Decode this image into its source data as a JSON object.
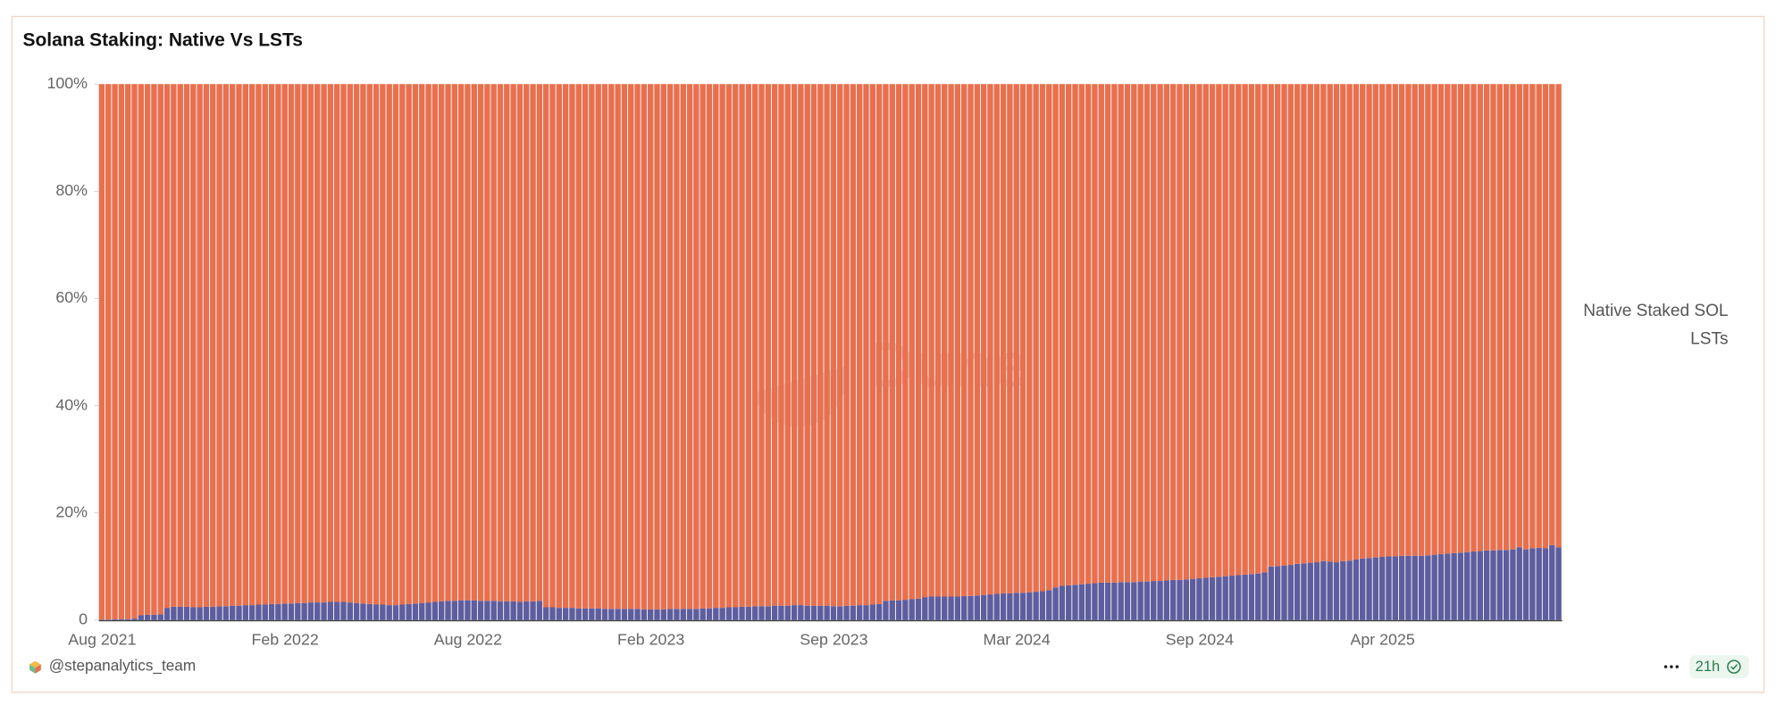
{
  "header": {
    "title": "Solana Staking: Native Vs LSTs"
  },
  "chart_data": {
    "type": "stacked-bar-100",
    "watermark": "Dune",
    "categories": [
      "Aug 2021",
      null,
      null,
      null,
      null,
      null,
      null,
      null,
      null,
      null,
      null,
      null,
      null,
      null,
      null,
      null,
      null,
      null,
      null,
      null,
      null,
      null,
      null,
      null,
      null,
      null,
      null,
      null,
      "Feb 2022",
      null,
      null,
      null,
      null,
      null,
      null,
      null,
      null,
      null,
      null,
      null,
      null,
      null,
      null,
      null,
      null,
      null,
      null,
      null,
      null,
      null,
      null,
      null,
      null,
      null,
      null,
      null,
      "Aug 2022",
      null,
      null,
      null,
      null,
      null,
      null,
      null,
      null,
      null,
      null,
      null,
      null,
      null,
      null,
      null,
      null,
      null,
      null,
      null,
      null,
      null,
      null,
      null,
      null,
      null,
      null,
      null,
      "Feb 2023",
      null,
      null,
      null,
      null,
      null,
      null,
      null,
      null,
      null,
      null,
      null,
      null,
      null,
      null,
      null,
      null,
      null,
      null,
      null,
      null,
      null,
      null,
      null,
      null,
      null,
      null,
      null,
      "Sep 2023",
      null,
      null,
      null,
      null,
      null,
      null,
      null,
      null,
      null,
      null,
      null,
      null,
      null,
      null,
      null,
      null,
      null,
      null,
      null,
      null,
      null,
      null,
      null,
      null,
      null,
      null,
      null,
      "Mar 2024",
      null,
      null,
      null,
      null,
      null,
      null,
      null,
      null,
      null,
      null,
      null,
      null,
      null,
      null,
      null,
      null,
      null,
      null,
      null,
      null,
      null,
      null,
      null,
      null,
      null,
      null,
      null,
      "Sep 2024",
      null,
      null,
      null,
      null,
      null,
      null,
      null,
      null,
      null,
      null,
      null,
      null,
      null,
      null,
      null,
      null,
      null,
      null,
      null,
      null,
      null,
      null,
      null,
      null,
      null,
      null,
      null,
      "Apr 2025",
      null,
      null,
      null,
      null,
      null,
      null,
      null,
      null,
      null,
      null,
      null,
      null,
      null,
      null,
      null,
      null,
      null,
      null,
      null,
      null,
      null,
      null,
      null,
      null,
      null,
      null,
      null
    ],
    "series": [
      {
        "name": "Native Staked SOL",
        "color": "#e8704e",
        "values": [
          99.9,
          99.9,
          99.8,
          99.8,
          99.8,
          99.7,
          99.1,
          99.0,
          99.0,
          98.9,
          97.7,
          97.5,
          97.5,
          97.5,
          97.6,
          97.6,
          97.5,
          97.5,
          97.4,
          97.4,
          97.3,
          97.3,
          97.2,
          97.2,
          97.1,
          97.1,
          97.0,
          97.0,
          96.9,
          96.9,
          96.8,
          96.8,
          96.7,
          96.7,
          96.7,
          96.6,
          96.6,
          96.6,
          96.7,
          96.8,
          96.9,
          97.0,
          97.1,
          97.1,
          97.2,
          97.2,
          97.1,
          97.0,
          96.9,
          96.8,
          96.7,
          96.6,
          96.5,
          96.4,
          96.4,
          96.3,
          96.3,
          96.3,
          96.4,
          96.4,
          96.4,
          96.5,
          96.5,
          96.5,
          96.6,
          96.5,
          96.5,
          96.4,
          97.6,
          97.6,
          97.7,
          97.7,
          97.7,
          97.8,
          97.8,
          97.8,
          97.8,
          97.9,
          97.9,
          97.9,
          97.9,
          97.9,
          97.9,
          98.0,
          98.0,
          98.0,
          98.0,
          97.9,
          97.9,
          97.9,
          97.9,
          97.9,
          97.8,
          97.8,
          97.7,
          97.7,
          97.6,
          97.6,
          97.5,
          97.5,
          97.4,
          97.4,
          97.4,
          97.3,
          97.3,
          97.3,
          97.2,
          97.2,
          97.3,
          97.3,
          97.3,
          97.3,
          97.4,
          97.4,
          97.3,
          97.3,
          97.2,
          97.2,
          97.1,
          97.0,
          96.4,
          96.3,
          96.3,
          96.2,
          96.1,
          96.0,
          95.7,
          95.6,
          95.6,
          95.6,
          95.6,
          95.6,
          95.5,
          95.5,
          95.4,
          95.3,
          95.2,
          95.1,
          95.0,
          95.0,
          94.9,
          94.9,
          94.8,
          94.7,
          94.6,
          94.4,
          93.9,
          93.6,
          93.5,
          93.4,
          93.3,
          93.2,
          93.1,
          93.0,
          93.0,
          93.0,
          92.9,
          92.9,
          92.9,
          92.8,
          92.8,
          92.7,
          92.7,
          92.6,
          92.5,
          92.5,
          92.4,
          92.3,
          92.2,
          92.1,
          92.0,
          91.9,
          91.8,
          91.7,
          91.6,
          91.5,
          91.4,
          91.3,
          91.1,
          90.0,
          89.9,
          89.8,
          89.7,
          89.5,
          89.4,
          89.3,
          89.2,
          89.0,
          89.1,
          89.2,
          89.0,
          88.9,
          88.7,
          88.5,
          88.4,
          88.3,
          88.2,
          88.1,
          88.1,
          88.0,
          88.0,
          88.0,
          88.0,
          87.9,
          87.8,
          87.7,
          87.6,
          87.5,
          87.4,
          87.3,
          87.2,
          87.1,
          87.0,
          87.0,
          86.9,
          86.9,
          86.8,
          86.4,
          86.8,
          86.6,
          86.5,
          86.6,
          86.0,
          86.4
        ]
      },
      {
        "name": "LSTs",
        "color": "#5e5d9e",
        "values": [
          0.1,
          0.1,
          0.2,
          0.2,
          0.2,
          0.3,
          0.9,
          1.0,
          1.0,
          1.1,
          2.3,
          2.5,
          2.5,
          2.5,
          2.4,
          2.4,
          2.5,
          2.5,
          2.6,
          2.6,
          2.7,
          2.7,
          2.8,
          2.8,
          2.9,
          2.9,
          3.0,
          3.0,
          3.1,
          3.1,
          3.2,
          3.2,
          3.3,
          3.3,
          3.3,
          3.4,
          3.4,
          3.4,
          3.3,
          3.2,
          3.1,
          3.0,
          2.9,
          2.9,
          2.8,
          2.8,
          2.9,
          3.0,
          3.1,
          3.2,
          3.3,
          3.4,
          3.5,
          3.6,
          3.6,
          3.7,
          3.7,
          3.7,
          3.6,
          3.6,
          3.6,
          3.5,
          3.5,
          3.5,
          3.4,
          3.5,
          3.5,
          3.6,
          2.4,
          2.4,
          2.3,
          2.3,
          2.3,
          2.2,
          2.2,
          2.2,
          2.2,
          2.1,
          2.1,
          2.1,
          2.1,
          2.1,
          2.1,
          2.0,
          2.0,
          2.0,
          2.0,
          2.1,
          2.1,
          2.1,
          2.1,
          2.1,
          2.2,
          2.2,
          2.3,
          2.3,
          2.4,
          2.4,
          2.5,
          2.5,
          2.6,
          2.6,
          2.6,
          2.7,
          2.7,
          2.7,
          2.8,
          2.8,
          2.7,
          2.7,
          2.7,
          2.7,
          2.6,
          2.6,
          2.7,
          2.7,
          2.8,
          2.8,
          2.9,
          3.0,
          3.6,
          3.7,
          3.7,
          3.8,
          3.9,
          4.0,
          4.3,
          4.4,
          4.4,
          4.4,
          4.4,
          4.4,
          4.5,
          4.5,
          4.6,
          4.7,
          4.8,
          4.9,
          5.0,
          5.0,
          5.1,
          5.1,
          5.2,
          5.3,
          5.4,
          5.6,
          6.1,
          6.4,
          6.5,
          6.6,
          6.7,
          6.8,
          6.9,
          7.0,
          7.0,
          7.0,
          7.1,
          7.1,
          7.1,
          7.2,
          7.2,
          7.3,
          7.3,
          7.4,
          7.5,
          7.5,
          7.6,
          7.7,
          7.8,
          7.9,
          8.0,
          8.1,
          8.2,
          8.3,
          8.4,
          8.5,
          8.6,
          8.7,
          8.9,
          10.0,
          10.1,
          10.2,
          10.3,
          10.5,
          10.6,
          10.7,
          10.8,
          11.0,
          10.9,
          10.8,
          11.0,
          11.1,
          11.3,
          11.5,
          11.6,
          11.7,
          11.8,
          11.9,
          11.9,
          12.0,
          12.0,
          12.0,
          12.0,
          12.1,
          12.2,
          12.3,
          12.4,
          12.5,
          12.6,
          12.7,
          12.8,
          12.9,
          13.0,
          13.0,
          13.1,
          13.1,
          13.2,
          13.6,
          13.2,
          13.4,
          13.5,
          13.4,
          14.0,
          13.6
        ]
      }
    ],
    "ylim": [
      0,
      100
    ],
    "yticks": [
      0,
      {
        "value": 20,
        "label": "20%"
      },
      {
        "value": 40,
        "label": "40%"
      },
      {
        "value": 60,
        "label": "60%"
      },
      {
        "value": 80,
        "label": "80%"
      },
      {
        "value": 100,
        "label": "100%"
      }
    ],
    "legend": "right"
  },
  "footer": {
    "author": "@stepanalytics_team",
    "updated": "21h"
  }
}
